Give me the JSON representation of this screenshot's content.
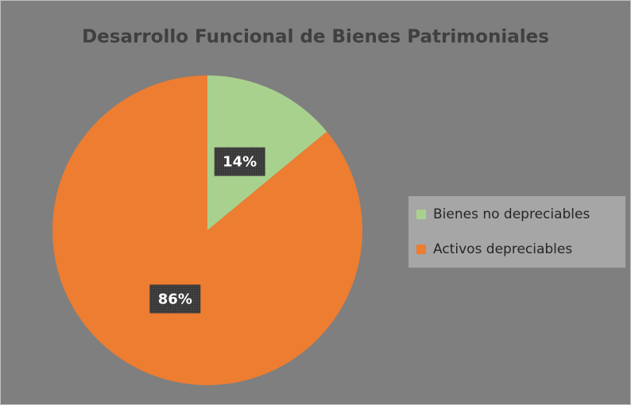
{
  "chart_data": {
    "type": "pie",
    "title": "Desarrollo Funcional de Bienes Patrimoniales",
    "categories": [
      "Bienes no depreciables",
      "Activos depreciables"
    ],
    "values": [
      14,
      86
    ],
    "value_labels": [
      "14%",
      "86%"
    ],
    "colors": [
      "#a9d18e",
      "#ed7d31"
    ],
    "legend": "right"
  }
}
